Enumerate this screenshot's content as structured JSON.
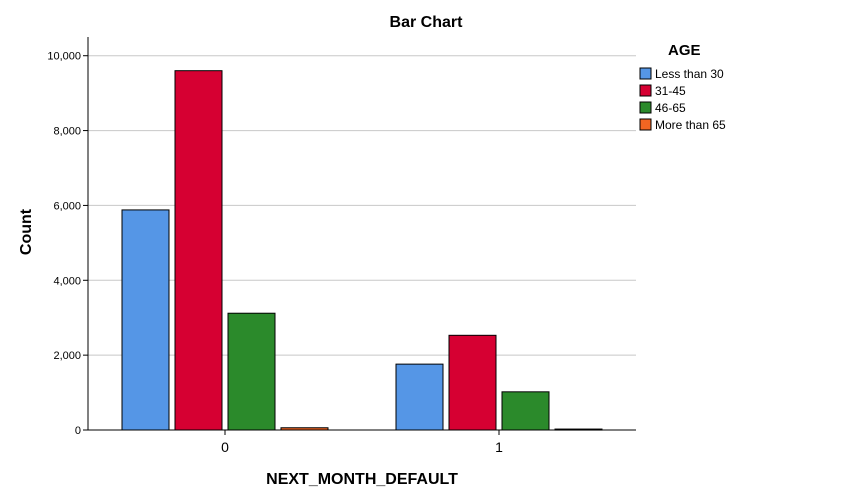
{
  "chart_data": {
    "type": "bar",
    "title": "Bar Chart",
    "xlabel": "NEXT_MONTH_DEFAULT",
    "ylabel": "Count",
    "categories": [
      "0",
      "1"
    ],
    "ylim": [
      0,
      10500
    ],
    "yticks": [
      0,
      2000,
      4000,
      6000,
      8000,
      10000
    ],
    "ytick_labels": [
      "0",
      "2,000",
      "4,000",
      "6,000",
      "8,000",
      "10,000"
    ],
    "grid": true,
    "legend": {
      "title": "AGE",
      "position": "right"
    },
    "series": [
      {
        "name": "Less than 30",
        "color": "#5596e6",
        "values": [
          5880,
          1760
        ]
      },
      {
        "name": "31-45",
        "color": "#d60032",
        "values": [
          9600,
          2530
        ]
      },
      {
        "name": "46-65",
        "color": "#2b8a2b",
        "values": [
          3120,
          1020
        ]
      },
      {
        "name": "More than 65",
        "color": "#f26522",
        "values": [
          60,
          25
        ]
      }
    ]
  }
}
